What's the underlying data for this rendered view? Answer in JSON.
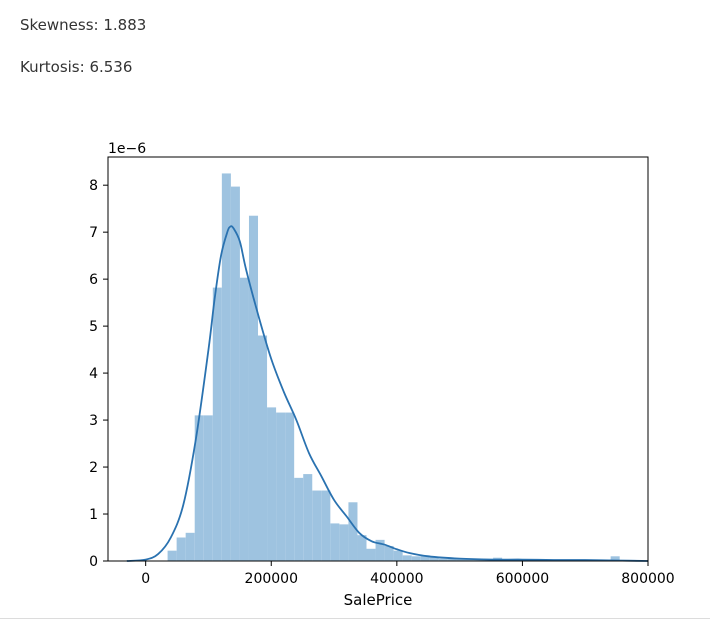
{
  "stats": {
    "skewness_text": "Skewness: 1.883",
    "kurtosis_text": "Kurtosis: 6.536"
  },
  "chart_data": {
    "type": "bar",
    "subtype": "histogram with kde line",
    "title": "",
    "xlabel": "SalePrice",
    "ylabel": "",
    "y_scale_label": "1e−6",
    "xlim": [
      -60000,
      800000
    ],
    "ylim": [
      0,
      8.6
    ],
    "xticks": [
      0,
      200000,
      400000,
      600000,
      800000
    ],
    "xtick_labels": [
      "0",
      "200000",
      "400000",
      "600000",
      "800000"
    ],
    "yticks": [
      0,
      1,
      2,
      3,
      4,
      5,
      6,
      7,
      8
    ],
    "ytick_labels": [
      "0",
      "1",
      "2",
      "3",
      "4",
      "5",
      "6",
      "7",
      "8"
    ],
    "grid": false,
    "legend": "none",
    "colors": {
      "bars": "#9ec3e0",
      "kde": "#2a72b0"
    },
    "histogram": {
      "bin_width": 14400,
      "bin_starts": [
        34900,
        49300,
        63700,
        78100,
        92500,
        106900,
        121300,
        135700,
        150100,
        164500,
        178900,
        193300,
        207700,
        222100,
        236500,
        250900,
        265300,
        279700,
        294100,
        308500,
        322900,
        337300,
        351700,
        366100,
        380500,
        394900,
        409300,
        423700,
        438100,
        452500,
        466900,
        481300,
        495700,
        510100,
        524500,
        538900,
        553300,
        567700,
        582100,
        596500,
        610900,
        625300,
        639700,
        654100,
        668500,
        682900,
        697300,
        711700,
        726100,
        740500
      ],
      "density": [
        0.22,
        0.5,
        0.6,
        3.1,
        3.1,
        5.82,
        8.25,
        7.97,
        6.03,
        7.35,
        4.8,
        3.27,
        3.16,
        3.16,
        1.77,
        1.85,
        1.5,
        1.5,
        0.8,
        0.78,
        1.25,
        0.55,
        0.26,
        0.45,
        0.32,
        0.22,
        0.12,
        0.1,
        0.12,
        0.08,
        0.05,
        0.05,
        0.04,
        0.04,
        0.04,
        0.05,
        0.07,
        0.04,
        0.04,
        0.03,
        0.02,
        0.02,
        0.02,
        0.02,
        0.02,
        0.02,
        0.02,
        0.02,
        0.02,
        0.1
      ]
    },
    "kde": {
      "x": [
        -30000,
        0,
        20000,
        40000,
        60000,
        80000,
        100000,
        110000,
        120000,
        130000,
        135000,
        140000,
        150000,
        160000,
        180000,
        200000,
        220000,
        240000,
        260000,
        280000,
        300000,
        320000,
        340000,
        360000,
        380000,
        400000,
        420000,
        450000,
        500000,
        550000,
        600000,
        650000,
        700000,
        750000,
        800000
      ],
      "y": [
        0.0,
        0.03,
        0.15,
        0.5,
        1.2,
        2.6,
        4.5,
        5.6,
        6.5,
        7.0,
        7.12,
        7.08,
        6.8,
        6.2,
        5.2,
        4.3,
        3.6,
        3.0,
        2.3,
        1.8,
        1.3,
        0.95,
        0.6,
        0.42,
        0.35,
        0.25,
        0.17,
        0.1,
        0.05,
        0.03,
        0.03,
        0.02,
        0.02,
        0.01,
        0.0
      ]
    }
  }
}
